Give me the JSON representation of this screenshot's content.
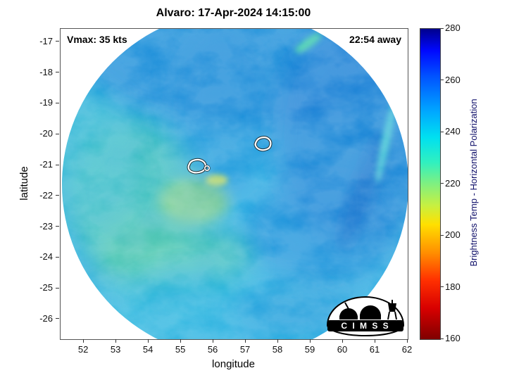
{
  "figure": {
    "title": "Alvaro: 17-Apr-2024 14:15:00",
    "annotation_left": "Vmax: 35 kts",
    "annotation_right": "22:54 away",
    "xlabel": "longitude",
    "ylabel": "latitude",
    "colorbar_label": "Brightness Temp - Horizontal Polarization",
    "logo_text": "C I M S S"
  },
  "chart_data": {
    "type": "heatmap",
    "title": "Alvaro: 17-Apr-2024 14:15:00",
    "xlabel": "longitude",
    "ylabel": "latitude",
    "xlim": [
      51.28,
      62.0
    ],
    "ylim": [
      -26.64,
      -16.57
    ],
    "xticks": [
      52,
      53,
      54,
      55,
      56,
      57,
      58,
      59,
      60,
      61,
      62
    ],
    "yticks": [
      -17,
      -18,
      -19,
      -20,
      -21,
      -22,
      -23,
      -24,
      -25,
      -26
    ],
    "grid": false,
    "annotations": [
      {
        "text": "Vmax: 35 kts",
        "position": "top-left"
      },
      {
        "text": "22:54 away",
        "position": "top-right"
      }
    ],
    "colorbar": {
      "label": "Brightness Temp - Horizontal Polarization",
      "range": [
        160,
        280
      ],
      "ticks": [
        160,
        180,
        200,
        220,
        240,
        260,
        280
      ],
      "colormap": "jet-reversed",
      "stops_top_to_bottom": [
        {
          "pos": 0,
          "color": "#00008c"
        },
        {
          "pos": 7,
          "color": "#0008ff"
        },
        {
          "pos": 15,
          "color": "#0050ff"
        },
        {
          "pos": 27,
          "color": "#00aaff"
        },
        {
          "pos": 35,
          "color": "#00e0f0"
        },
        {
          "pos": 43,
          "color": "#30f0c0"
        },
        {
          "pos": 50,
          "color": "#80f080"
        },
        {
          "pos": 57,
          "color": "#c8f040"
        },
        {
          "pos": 63,
          "color": "#ffe000"
        },
        {
          "pos": 72,
          "color": "#ff9000"
        },
        {
          "pos": 81,
          "color": "#ff3000"
        },
        {
          "pos": 90,
          "color": "#d80000"
        },
        {
          "pos": 100,
          "color": "#800000"
        }
      ]
    },
    "swath": {
      "shape": "circular",
      "center_lon": 56.7,
      "center_lat": -21.6,
      "radius_deg": 5.3,
      "background_temp_K_range": [
        245,
        265
      ],
      "cold_patch_temp_K_range": [
        215,
        240
      ],
      "dominant_colors": [
        "#2fb4e4",
        "#1b86d8",
        "#55cfae",
        "#9fdc7a"
      ]
    },
    "contours": [
      {
        "lon": 55.5,
        "lat": -21.15,
        "style": "white-closed-contour"
      },
      {
        "lon": 57.5,
        "lat": -20.35,
        "style": "white-closed-contour"
      }
    ]
  }
}
